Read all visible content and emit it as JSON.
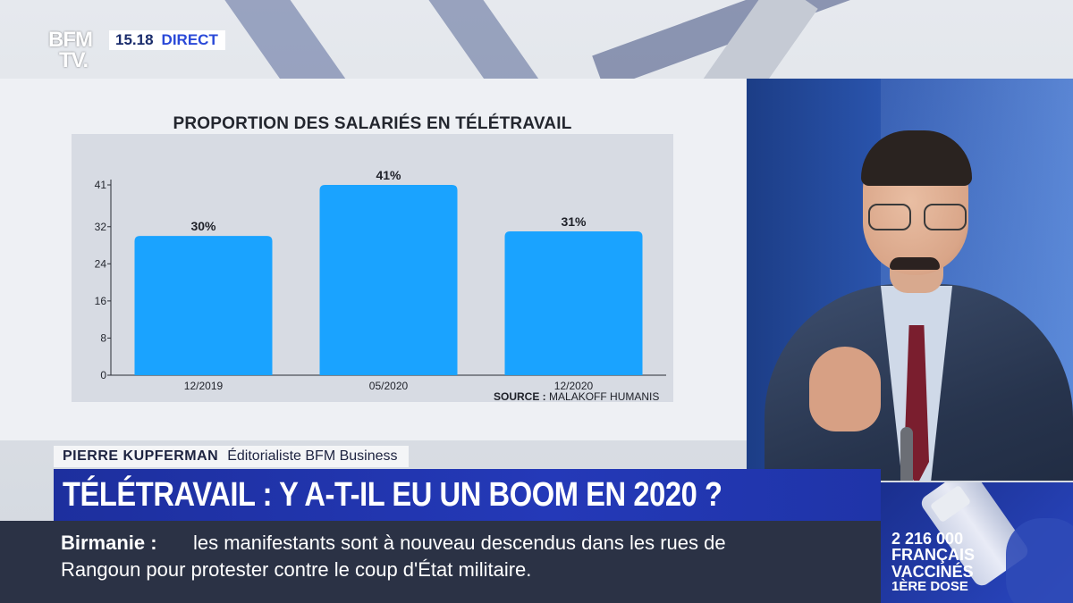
{
  "channel": {
    "logo_top": "BFM",
    "logo_bottom": "TV.",
    "time": "15.18",
    "live_label": "DIRECT"
  },
  "guest": {
    "name": "PIERRE KUPFERMAN",
    "role": "Éditorialiste BFM Business"
  },
  "headline": "TÉLÉTRAVAIL : Y A-T-IL EU UN BOOM EN 2020 ?",
  "ticker": {
    "topic": "Birmanie",
    "separator": ":",
    "line_1": "les manifestants sont à nouveau descendus dans les rues de",
    "line_2": "Rangoun pour protester contre le coup d'État militaire."
  },
  "vaccine": {
    "count": "2 216 000",
    "label_1": "FRANÇAIS",
    "label_2": "VACCINÉS",
    "dose": "1ÈRE DOSE"
  },
  "colors": {
    "bar": "#1aa3ff",
    "plot_bg": "#d7dbe3",
    "headline_bg": "#2439b8",
    "ticker_bg": "#2b3245"
  },
  "chart_data": {
    "type": "bar",
    "title": "PROPORTION DES SALARIÉS EN TÉLÉTRAVAIL",
    "source_prefix": "SOURCE :",
    "source": "MALAKOFF HUMANIS",
    "categories": [
      "12/2019",
      "05/2020",
      "12/2020"
    ],
    "values": [
      30,
      41,
      31
    ],
    "data_labels": [
      "30%",
      "41%",
      "31%"
    ],
    "yticks": [
      0,
      8,
      16,
      24,
      32,
      41
    ],
    "ylim": [
      0,
      41
    ],
    "grid": false,
    "legend": "none"
  }
}
